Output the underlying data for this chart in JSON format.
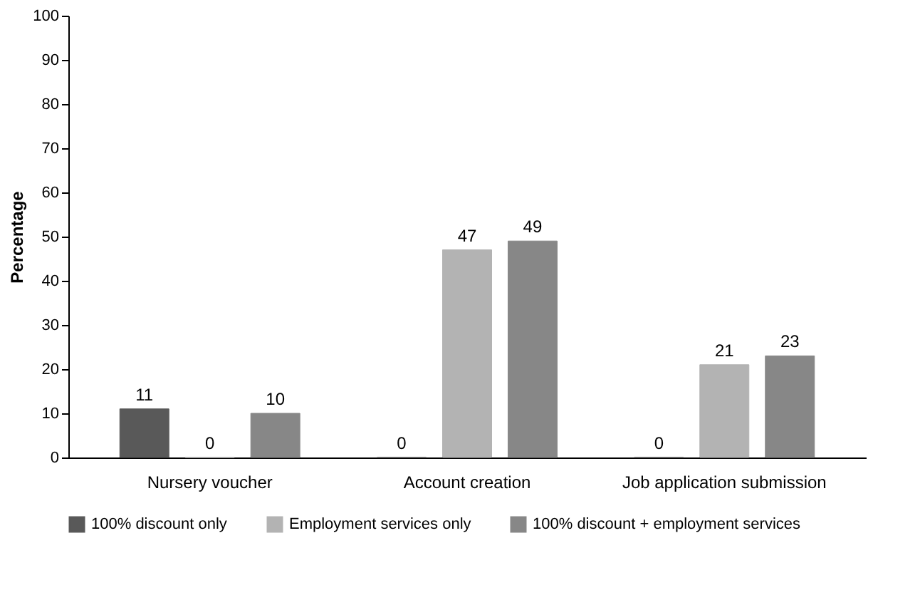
{
  "chart_data": {
    "type": "bar",
    "ylabel": "Percentage",
    "categories": [
      "Nursery voucher",
      "Account creation",
      "Job application submission"
    ],
    "series": [
      {
        "name": "100% discount only",
        "color": "#595959",
        "values": [
          11,
          0,
          0
        ]
      },
      {
        "name": "Employment services only",
        "color": "#b3b3b3",
        "values": [
          0,
          47,
          21
        ]
      },
      {
        "name": "100% discount + employment services",
        "color": "#878787",
        "values": [
          10,
          49,
          23
        ]
      }
    ],
    "ylim": [
      0,
      100
    ],
    "yticks": [
      0,
      10,
      20,
      30,
      40,
      50,
      60,
      70,
      80,
      90,
      100
    ],
    "data_labels": true,
    "grid": false,
    "legend": "bottom"
  }
}
